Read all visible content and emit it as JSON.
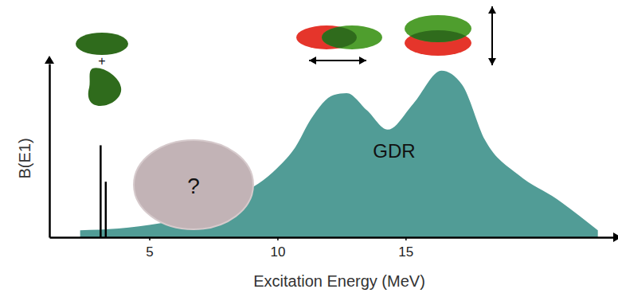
{
  "chart_data": {
    "type": "area",
    "x_label": "Excitation Energy (MeV)",
    "y_label": "B(E1)",
    "xlim": [
      1.1,
      23.1
    ],
    "xticks": [
      5,
      10,
      15
    ],
    "ylim": [
      0,
      10
    ],
    "yticks": [],
    "tick_labels": "x",
    "grid": false,
    "series": [
      {
        "type": "area",
        "color": "#519c96",
        "x": [
          2.3,
          3.8,
          5.4,
          7.0,
          8.5,
          10.0,
          10.7,
          11.3,
          12.2,
          12.7,
          13.5,
          14.3,
          15.3,
          16.4,
          17.2,
          18.1,
          19.4,
          20.9,
          22.5
        ],
        "values": [
          0.4,
          0.5,
          0.8,
          1.3,
          2.4,
          4.0,
          5.2,
          6.8,
          8.2,
          8.3,
          7.3,
          6.2,
          7.7,
          9.6,
          8.8,
          5.6,
          3.6,
          2.2,
          0.4
        ]
      },
      {
        "type": "bar",
        "color": "#000000",
        "x": [
          3.1,
          3.3
        ],
        "values": [
          5.3,
          3.2
        ]
      }
    ],
    "annotations": [
      "GDR",
      "?",
      "+"
    ]
  }
}
